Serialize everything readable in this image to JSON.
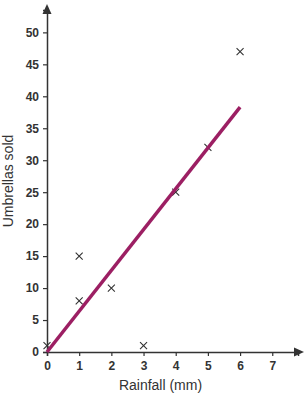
{
  "chart_data": {
    "type": "scatter",
    "x_label": "Rainfall (mm)",
    "y_label": "Umbrellas sold",
    "series": [
      {
        "type": "scatter",
        "marker": "x",
        "color": "#333333",
        "x": [
          0,
          1,
          1,
          2,
          3,
          4,
          5,
          6
        ],
        "values": [
          1,
          15,
          8,
          10,
          1,
          25,
          32,
          47
        ]
      },
      {
        "type": "line",
        "color": "#9c1f63",
        "x": [
          0,
          6
        ],
        "values": [
          0,
          38.3
        ]
      }
    ],
    "xlim": [
      0,
      7.8
    ],
    "ylim": [
      0,
      53.5
    ],
    "xticks": [
      0,
      1,
      2,
      3,
      4,
      5,
      6,
      7
    ],
    "yticks": [
      0,
      5,
      10,
      15,
      20,
      25,
      30,
      35,
      40,
      45,
      50
    ]
  }
}
